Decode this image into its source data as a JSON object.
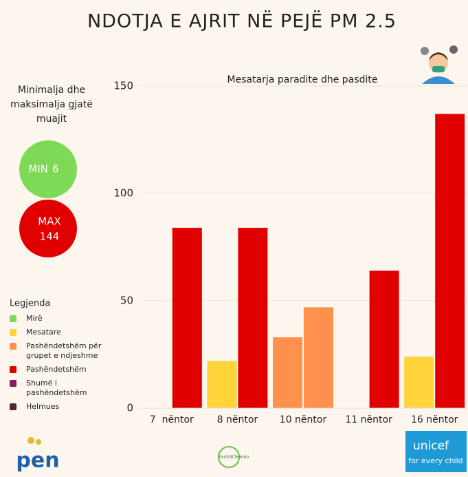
{
  "chart_data": {
    "type": "bar",
    "title": "NDOTJA E AJRIT NË PEJË PM 2.5",
    "subtitle": "Mesatarja paradite dhe pasdite",
    "categories": [
      "7  nëntor",
      "8 nëntor",
      "10 nëntor",
      "11 nëntor",
      "16 nëntor"
    ],
    "series": [
      {
        "values": [
          null,
          22,
          33,
          null,
          24
        ],
        "colors": [
          null,
          "#ffd43b",
          "#ff914d",
          null,
          "#ffd43b"
        ]
      },
      {
        "values": [
          84,
          84,
          47,
          64,
          137
        ],
        "colors": [
          "#e00000",
          "#e00000",
          "#ff914d",
          "#e00000",
          "#e00000"
        ]
      }
    ],
    "ylim": [
      0,
      150
    ],
    "yticks": [
      0,
      50,
      100,
      150
    ],
    "grid": true,
    "range_title": "Minimalja dhe maksimalja gjatë muajit",
    "min": {
      "label": "MIN",
      "value": 6,
      "color": "#7ed957"
    },
    "max": {
      "label": "MAX",
      "value": 144,
      "color": "#e00000"
    },
    "legend_title": "Legjenda",
    "legend_items": [
      {
        "label": "Mirë",
        "color": "#7ed957"
      },
      {
        "label": "Mesatare",
        "color": "#ffd43b"
      },
      {
        "label": "Pashëndetshëm për grupet e ndjeshme",
        "color": "#ff914d"
      },
      {
        "label": "Pashëndetshëm",
        "color": "#e00000"
      },
      {
        "label": "Shumë i pashëndetshëm",
        "color": "#8c1c5c"
      },
      {
        "label": "Helmues",
        "color": "#4a2a2a"
      }
    ],
    "logos": [
      "pen",
      "Youth4CleanAir",
      "unicef",
      "for every child"
    ]
  }
}
